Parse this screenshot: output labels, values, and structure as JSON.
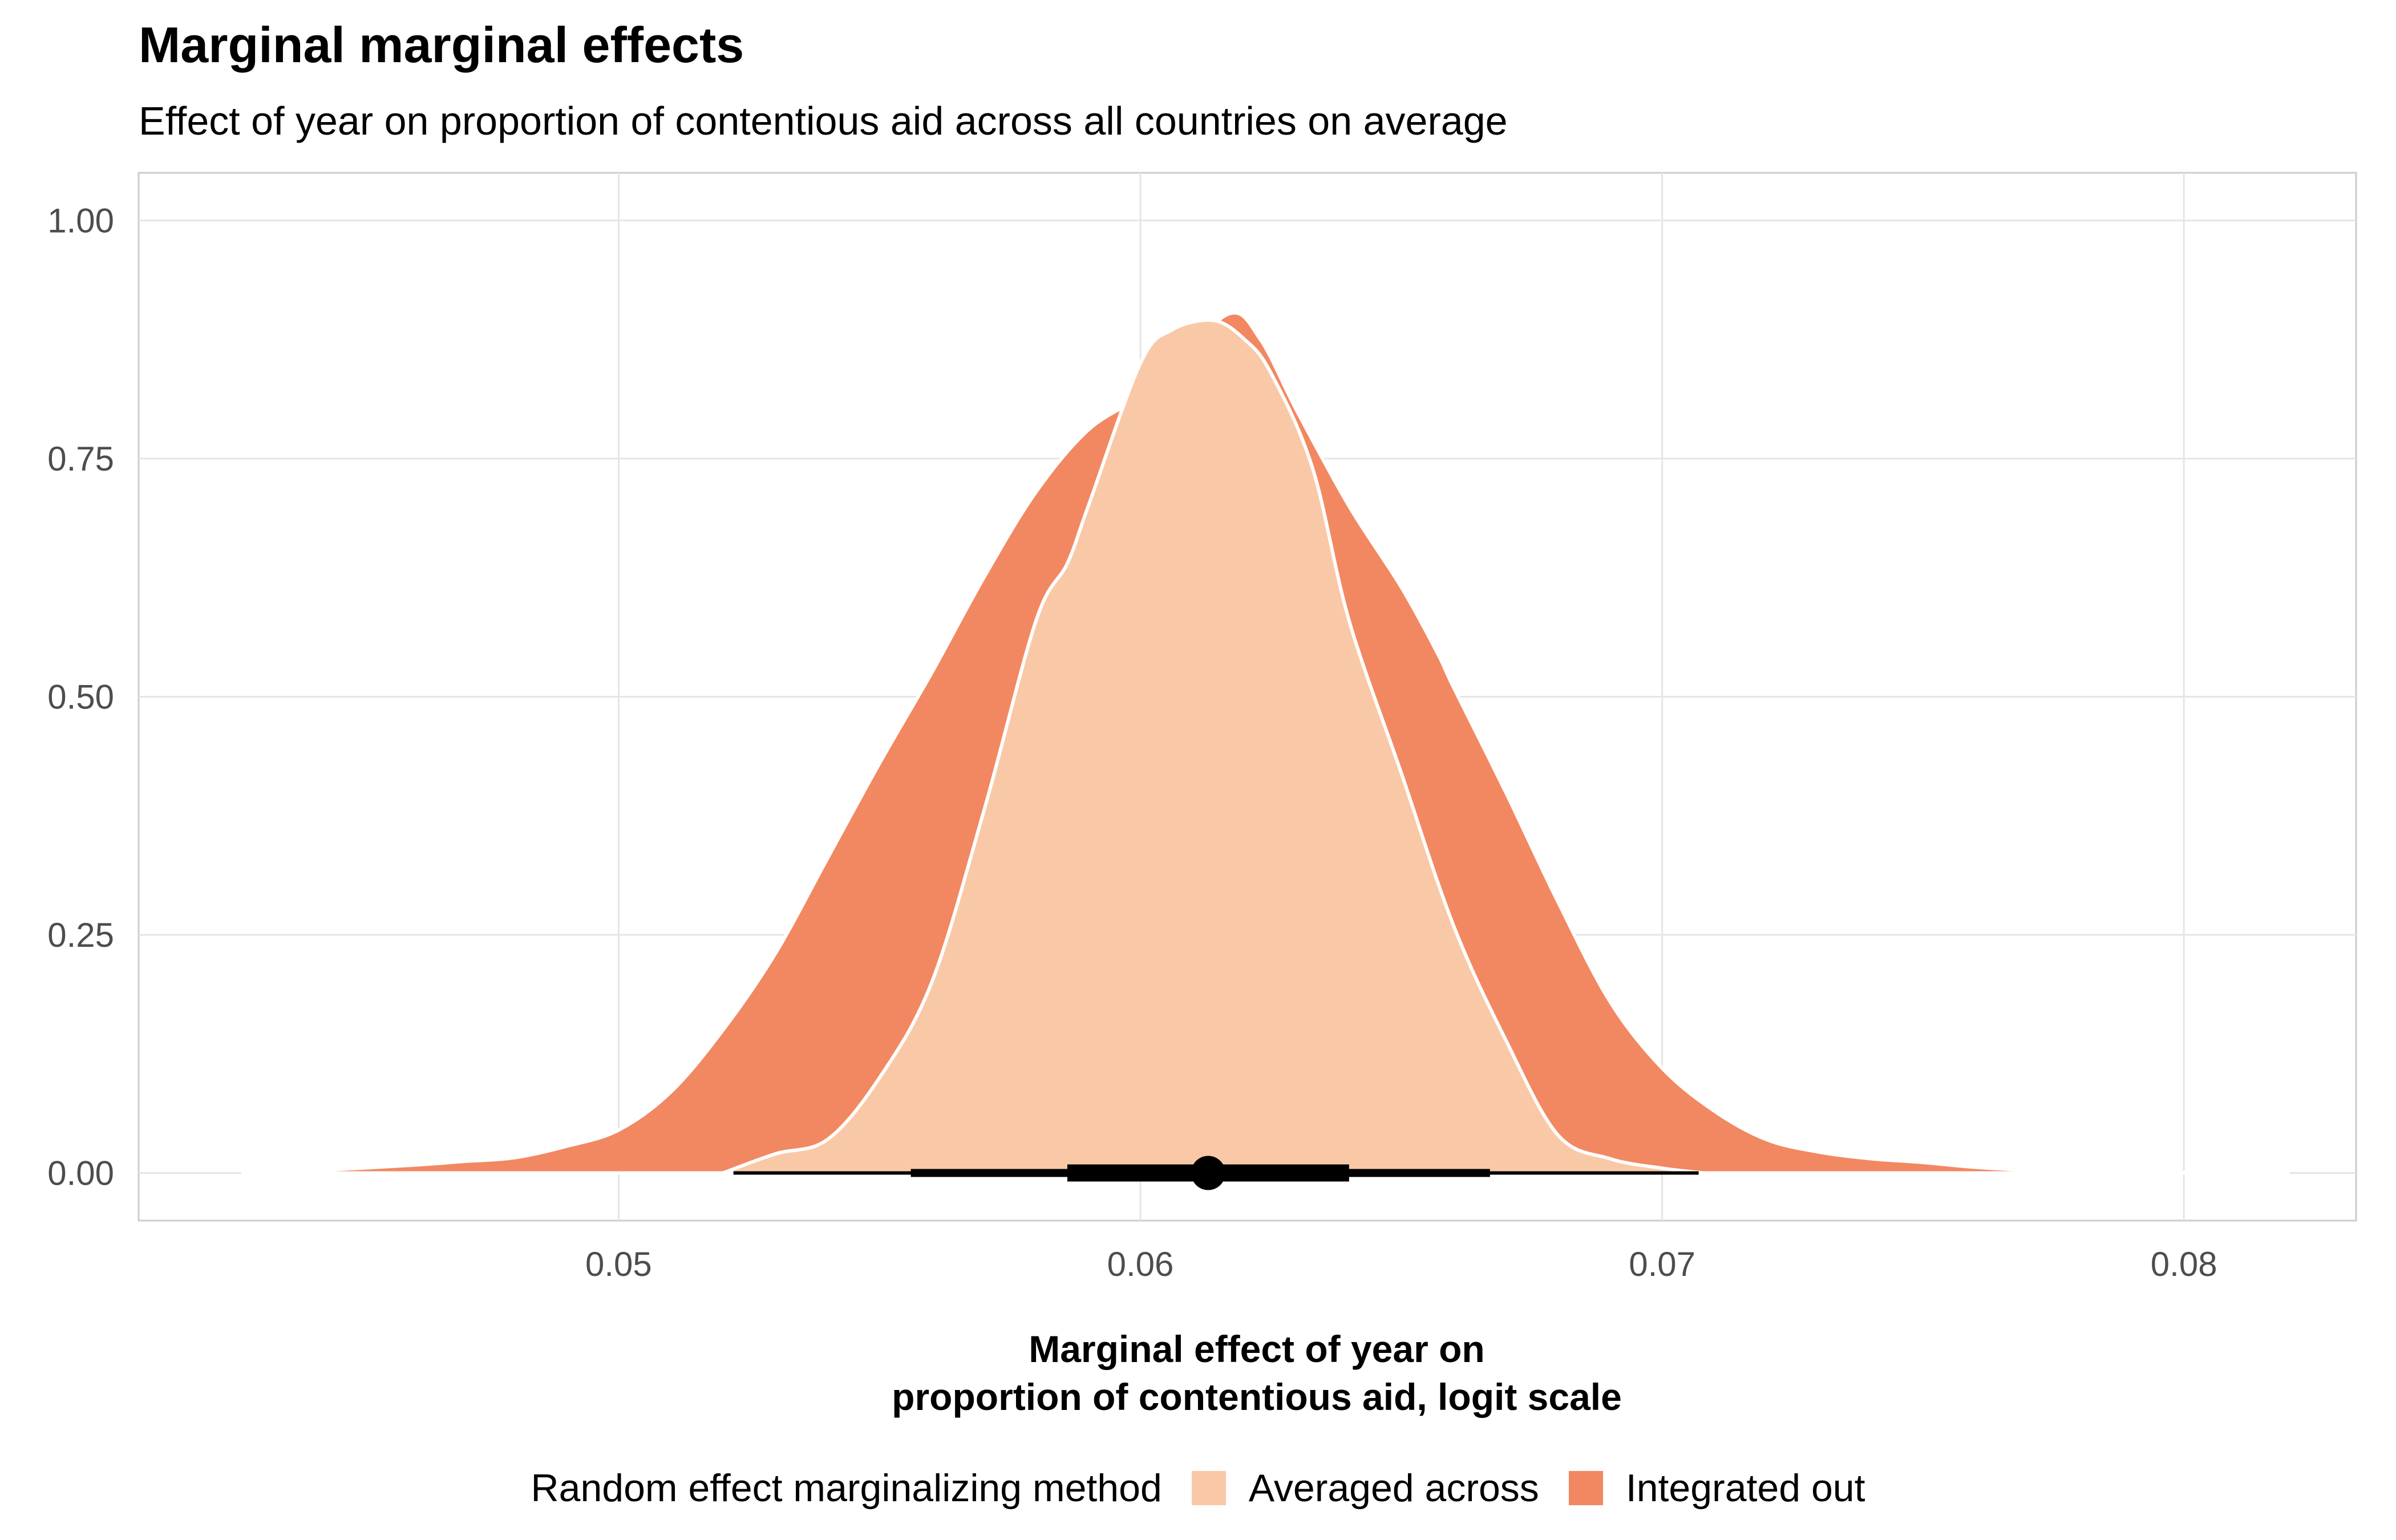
{
  "chart_data": {
    "type": "area",
    "title": "Marginal marginal effects",
    "subtitle": "Effect of year on proportion of contentious aid across all countries on average",
    "xlabel": [
      "Marginal effect of year on",
      "proportion of contentious aid, logit scale"
    ],
    "ylabel": "",
    "xlim": [
      0.0408,
      0.0833
    ],
    "ylim": [
      -0.05,
      1.05
    ],
    "x_ticks": [
      0.05,
      0.06,
      0.07,
      0.08
    ],
    "x_tick_labels": [
      "0.05",
      "0.06",
      "0.07",
      "0.08"
    ],
    "y_ticks": [
      0,
      0.25,
      0.5,
      0.75,
      1.0
    ],
    "y_tick_labels": [
      "0.00",
      "0.25",
      "0.50",
      "0.75",
      "1.00"
    ],
    "grid": true,
    "legend": {
      "title": "Random effect marginalizing method",
      "position": "bottom",
      "entries": [
        "Averaged across",
        "Integrated out"
      ]
    },
    "series": [
      {
        "name": "Integrated out",
        "color": "#f28861",
        "x": [
          0.0428,
          0.044,
          0.046,
          0.047,
          0.048,
          0.049,
          0.05,
          0.051,
          0.052,
          0.053,
          0.054,
          0.055,
          0.056,
          0.057,
          0.058,
          0.059,
          0.06,
          0.0606,
          0.0617,
          0.0623,
          0.063,
          0.064,
          0.065,
          0.0657,
          0.066,
          0.067,
          0.068,
          0.069,
          0.07,
          0.071,
          0.072,
          0.073,
          0.074,
          0.075,
          0.076,
          0.077,
          0.078,
          0.079,
          0.08,
          0.081,
          0.082
        ],
        "y": [
          0.0,
          0.002,
          0.008,
          0.012,
          0.016,
          0.028,
          0.045,
          0.085,
          0.15,
          0.23,
          0.33,
          0.43,
          0.525,
          0.625,
          0.715,
          0.78,
          0.815,
          0.845,
          0.902,
          0.875,
          0.8,
          0.7,
          0.615,
          0.545,
          0.51,
          0.4,
          0.285,
          0.18,
          0.11,
          0.065,
          0.035,
          0.022,
          0.015,
          0.011,
          0.006,
          0.003,
          0.002,
          0.001,
          0.0005,
          0.0002,
          0.0
        ]
      },
      {
        "name": "Averaged across",
        "color": "#f9c9a7",
        "x": [
          0.052,
          0.053,
          0.054,
          0.055,
          0.056,
          0.057,
          0.058,
          0.0586,
          0.059,
          0.06,
          0.0606,
          0.0614,
          0.062,
          0.0625,
          0.0633,
          0.064,
          0.065,
          0.066,
          0.067,
          0.068,
          0.069,
          0.07,
          0.0708
        ],
        "y": [
          0.0,
          0.02,
          0.035,
          0.1,
          0.2,
          0.38,
          0.58,
          0.64,
          0.7,
          0.85,
          0.885,
          0.895,
          0.875,
          0.84,
          0.74,
          0.58,
          0.42,
          0.26,
          0.14,
          0.04,
          0.015,
          0.005,
          0.0
        ]
      }
    ],
    "point_interval": {
      "point": 0.0613,
      "intervals": [
        {
          "lower": 0.0586,
          "upper": 0.064,
          "width": 0.5
        },
        {
          "lower": 0.0556,
          "upper": 0.0667,
          "width": 0.8
        },
        {
          "lower": 0.0522,
          "upper": 0.0707,
          "width": 0.95
        }
      ]
    }
  }
}
